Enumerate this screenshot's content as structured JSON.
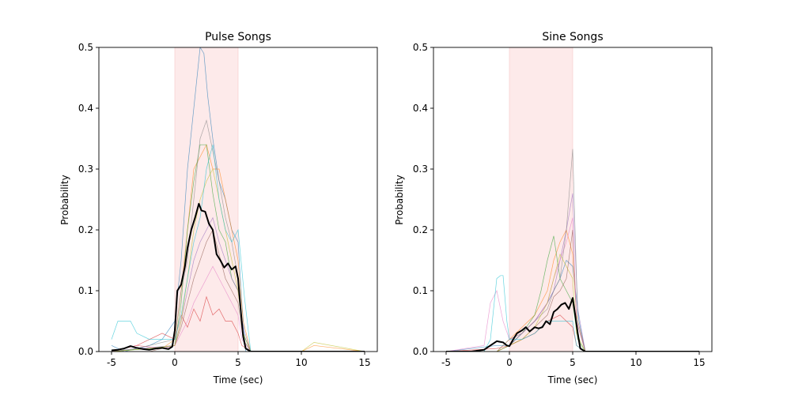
{
  "chart_data": [
    {
      "type": "line",
      "title": "Pulse Songs",
      "xlabel": "Time (sec)",
      "ylabel": "Probability",
      "xlim": [
        -6,
        16
      ],
      "ylim": [
        0,
        0.5
      ],
      "x_ticks": [
        -5,
        0,
        5,
        10,
        15
      ],
      "y_ticks": [
        "0.0",
        "0.1",
        "0.2",
        "0.3",
        "0.4",
        "0.5"
      ],
      "shaded_region": [
        0,
        5
      ],
      "shade_color": "#fde8e8",
      "grid": false,
      "mean_series": {
        "color": "#000000",
        "x": [
          -5,
          -4.5,
          -4,
          -3.5,
          -3,
          -2.5,
          -2,
          -1.5,
          -1,
          -0.5,
          -0.2,
          0,
          0.2,
          0.5,
          0.8,
          1.0,
          1.3,
          1.6,
          1.9,
          2.1,
          2.4,
          2.7,
          3.0,
          3.3,
          3.6,
          3.9,
          4.2,
          4.5,
          4.8,
          5.0,
          5.2,
          5.4,
          5.6,
          6.0,
          8,
          10,
          12,
          15
        ],
        "y": [
          0.002,
          0.003,
          0.005,
          0.009,
          0.006,
          0.004,
          0.003,
          0.005,
          0.006,
          0.004,
          0.008,
          0.035,
          0.1,
          0.11,
          0.14,
          0.17,
          0.2,
          0.22,
          0.243,
          0.232,
          0.23,
          0.21,
          0.2,
          0.16,
          0.15,
          0.138,
          0.145,
          0.135,
          0.14,
          0.12,
          0.07,
          0.025,
          0.005,
          0.0,
          0.0,
          0.0,
          0.0,
          0.0
        ]
      },
      "trial_series": [
        {
          "color": "#1f77b4",
          "x": [
            -5,
            -4,
            -2,
            -1,
            0,
            0.5,
            1,
            1.5,
            2,
            2.3,
            2.6,
            3,
            3.5,
            4,
            4.5,
            5,
            5.3,
            5.6,
            7,
            15
          ],
          "y": [
            0.01,
            0.0,
            0.01,
            0.02,
            0.05,
            0.15,
            0.3,
            0.4,
            0.5,
            0.49,
            0.42,
            0.35,
            0.28,
            0.25,
            0.2,
            0.18,
            0.08,
            0.0,
            0.0,
            0.0
          ]
        },
        {
          "color": "#ff7f0e",
          "x": [
            -5,
            -3,
            -1,
            0,
            0.5,
            1,
            1.5,
            2,
            2.5,
            3,
            3.5,
            4,
            4.5,
            5,
            5.4,
            6,
            10,
            11,
            15
          ],
          "y": [
            0.0,
            0.01,
            0.005,
            0.02,
            0.1,
            0.2,
            0.3,
            0.32,
            0.34,
            0.3,
            0.3,
            0.25,
            0.2,
            0.15,
            0.05,
            0.0,
            0.0,
            0.01,
            0.0
          ]
        },
        {
          "color": "#2ca02c",
          "x": [
            -5,
            -2,
            0,
            0.5,
            1,
            1.5,
            2,
            2.5,
            3,
            3.5,
            4,
            4.5,
            5,
            5.4,
            6,
            15
          ],
          "y": [
            0.0,
            0.005,
            0.01,
            0.08,
            0.2,
            0.28,
            0.34,
            0.34,
            0.26,
            0.2,
            0.18,
            0.12,
            0.1,
            0.03,
            0.0,
            0.0
          ]
        },
        {
          "color": "#d62728",
          "x": [
            -5,
            -3,
            -1,
            0,
            0.5,
            1,
            1.5,
            2,
            2.5,
            3,
            3.5,
            4,
            4.5,
            5,
            5.3,
            6,
            15
          ],
          "y": [
            0.0,
            0.01,
            0.03,
            0.02,
            0.06,
            0.04,
            0.07,
            0.05,
            0.09,
            0.06,
            0.07,
            0.05,
            0.05,
            0.03,
            0.01,
            0.0,
            0.0
          ]
        },
        {
          "color": "#9467bd",
          "x": [
            -5,
            -3,
            0,
            0.5,
            1,
            1.5,
            2,
            2.5,
            3,
            3.5,
            4,
            4.5,
            5,
            5.4,
            6,
            15
          ],
          "y": [
            0.0,
            0.005,
            0.01,
            0.05,
            0.1,
            0.15,
            0.18,
            0.2,
            0.22,
            0.18,
            0.15,
            0.12,
            0.1,
            0.04,
            0.0,
            0.0
          ]
        },
        {
          "color": "#8c564b",
          "x": [
            -5,
            -2,
            0,
            0.5,
            1,
            1.5,
            2,
            2.5,
            3,
            3.5,
            4,
            4.5,
            5,
            5.4,
            6,
            15
          ],
          "y": [
            0.0,
            0.0,
            0.01,
            0.04,
            0.08,
            0.12,
            0.15,
            0.18,
            0.2,
            0.16,
            0.12,
            0.1,
            0.08,
            0.02,
            0.0,
            0.0
          ]
        },
        {
          "color": "#e377c2",
          "x": [
            -5,
            -4,
            -3,
            -1,
            0,
            0.5,
            1,
            1.5,
            2,
            2.5,
            3,
            3.5,
            4,
            4.5,
            5,
            5.3,
            6,
            15
          ],
          "y": [
            0.0,
            0.005,
            0.01,
            0.005,
            0.01,
            0.03,
            0.05,
            0.08,
            0.1,
            0.12,
            0.14,
            0.12,
            0.1,
            0.08,
            0.06,
            0.02,
            0.0,
            0.0
          ]
        },
        {
          "color": "#7f7f7f",
          "x": [
            -5,
            -3,
            0,
            0.5,
            1,
            1.5,
            2,
            2.5,
            3,
            3.5,
            4,
            4.5,
            5,
            5.4,
            6,
            15
          ],
          "y": [
            0.0,
            0.005,
            0.02,
            0.1,
            0.15,
            0.25,
            0.35,
            0.38,
            0.33,
            0.28,
            0.22,
            0.18,
            0.12,
            0.03,
            0.0,
            0.0
          ]
        },
        {
          "color": "#bcbd22",
          "x": [
            -5,
            -2,
            0,
            0.5,
            1,
            1.5,
            2,
            2.5,
            3,
            3.5,
            4,
            4.5,
            5,
            5.4,
            6,
            10,
            11,
            15
          ],
          "y": [
            0.0,
            0.005,
            0.01,
            0.05,
            0.12,
            0.2,
            0.25,
            0.28,
            0.3,
            0.25,
            0.2,
            0.15,
            0.1,
            0.03,
            0.0,
            0.0,
            0.015,
            0.0
          ]
        },
        {
          "color": "#17becf",
          "x": [
            -5,
            -4.5,
            -4,
            -3.5,
            -3,
            -2,
            0,
            0.5,
            1,
            1.5,
            2,
            2.5,
            3,
            3.5,
            4,
            4.5,
            5,
            5.5,
            6,
            15
          ],
          "y": [
            0.02,
            0.05,
            0.05,
            0.05,
            0.03,
            0.02,
            0.02,
            0.06,
            0.12,
            0.18,
            0.22,
            0.3,
            0.34,
            0.25,
            0.2,
            0.18,
            0.2,
            0.09,
            0.0,
            0.0
          ]
        }
      ]
    },
    {
      "type": "line",
      "title": "Sine Songs",
      "xlabel": "Time (sec)",
      "ylabel": "Probability",
      "xlim": [
        -6,
        16
      ],
      "ylim": [
        0,
        0.5
      ],
      "x_ticks": [
        -5,
        0,
        5,
        10,
        15
      ],
      "y_ticks": [
        "0.0",
        "0.1",
        "0.2",
        "0.3",
        "0.4",
        "0.5"
      ],
      "shaded_region": [
        0,
        5
      ],
      "shade_color": "#fde8e8",
      "grid": false,
      "mean_series": {
        "color": "#000000",
        "x": [
          -5,
          -3,
          -2,
          -1.5,
          -1,
          -0.5,
          -0.2,
          0,
          0.3,
          0.6,
          1.0,
          1.3,
          1.6,
          2.0,
          2.3,
          2.6,
          2.9,
          3.2,
          3.5,
          3.8,
          4.1,
          4.4,
          4.7,
          5.0,
          5.2,
          5.4,
          5.6,
          6.0,
          8,
          10,
          12,
          15
        ],
        "y": [
          0.0,
          0.0,
          0.003,
          0.01,
          0.017,
          0.015,
          0.01,
          0.009,
          0.02,
          0.03,
          0.035,
          0.04,
          0.033,
          0.04,
          0.038,
          0.04,
          0.05,
          0.045,
          0.065,
          0.07,
          0.077,
          0.08,
          0.07,
          0.088,
          0.06,
          0.03,
          0.005,
          0.0,
          0.0,
          0.0,
          0.0,
          0.0
        ]
      },
      "trial_series": [
        {
          "color": "#1f77b4",
          "x": [
            -5,
            -1,
            0,
            1,
            2,
            3,
            3.5,
            4,
            4.5,
            5,
            5.5,
            6,
            15
          ],
          "y": [
            0.0,
            0.01,
            0.01,
            0.03,
            0.05,
            0.08,
            0.1,
            0.12,
            0.15,
            0.14,
            0.05,
            0.0,
            0.0
          ]
        },
        {
          "color": "#ff7f0e",
          "x": [
            -5,
            -1,
            0,
            1,
            2,
            3,
            3.5,
            4,
            4.5,
            5,
            5.3,
            6,
            15
          ],
          "y": [
            0.0,
            0.0,
            0.02,
            0.04,
            0.06,
            0.1,
            0.15,
            0.18,
            0.2,
            0.16,
            0.06,
            0.0,
            0.0
          ]
        },
        {
          "color": "#2ca02c",
          "x": [
            -5,
            -1,
            0,
            1,
            2,
            2.5,
            3,
            3.5,
            4,
            4.5,
            5,
            5.4,
            6,
            15
          ],
          "y": [
            0.0,
            0.0,
            0.01,
            0.03,
            0.06,
            0.1,
            0.15,
            0.19,
            0.12,
            0.1,
            0.08,
            0.02,
            0.0,
            0.0
          ]
        },
        {
          "color": "#d62728",
          "x": [
            -5,
            -1,
            0,
            1,
            2,
            3,
            4,
            4.5,
            5,
            5.3,
            6,
            15
          ],
          "y": [
            0.0,
            0.005,
            0.01,
            0.02,
            0.03,
            0.05,
            0.06,
            0.05,
            0.04,
            0.01,
            0.0,
            0.0
          ]
        },
        {
          "color": "#9467bd",
          "x": [
            -5,
            -1,
            0,
            1,
            2,
            3,
            3.5,
            4,
            4.5,
            5,
            5.4,
            6,
            15
          ],
          "y": [
            0.0,
            0.0,
            0.01,
            0.03,
            0.05,
            0.08,
            0.1,
            0.15,
            0.2,
            0.26,
            0.07,
            0.0,
            0.0
          ]
        },
        {
          "color": "#8c564b",
          "x": [
            -5,
            -1,
            0,
            1,
            2,
            3,
            3.5,
            4,
            4.5,
            5,
            5.3,
            6,
            15
          ],
          "y": [
            0.0,
            0.0,
            0.01,
            0.02,
            0.04,
            0.06,
            0.09,
            0.1,
            0.12,
            0.2,
            0.05,
            0.0,
            0.0
          ]
        },
        {
          "color": "#e377c2",
          "x": [
            -5,
            -2,
            -1.5,
            -1,
            -0.5,
            0,
            1,
            2,
            3,
            3.5,
            4,
            4.5,
            5,
            5.3,
            6,
            15
          ],
          "y": [
            0.0,
            0.01,
            0.08,
            0.1,
            0.05,
            0.02,
            0.03,
            0.05,
            0.08,
            0.12,
            0.15,
            0.18,
            0.22,
            0.05,
            0.0,
            0.0
          ]
        },
        {
          "color": "#7f7f7f",
          "x": [
            -5,
            -1,
            0,
            1,
            2,
            3,
            3.5,
            4,
            4.5,
            5,
            5.4,
            6,
            15
          ],
          "y": [
            0.0,
            0.0,
            0.02,
            0.03,
            0.05,
            0.07,
            0.1,
            0.12,
            0.2,
            0.333,
            0.05,
            0.0,
            0.0
          ]
        },
        {
          "color": "#bcbd22",
          "x": [
            -5,
            -1,
            0,
            1,
            2,
            3,
            3.5,
            4,
            4.5,
            5,
            5.3,
            6,
            15
          ],
          "y": [
            0.0,
            0.0,
            0.01,
            0.02,
            0.04,
            0.08,
            0.12,
            0.16,
            0.14,
            0.12,
            0.03,
            0.0,
            0.0
          ]
        },
        {
          "color": "#17becf",
          "x": [
            -5,
            -2,
            -1.5,
            -1,
            -0.7,
            -0.5,
            -0.2,
            0,
            1,
            2,
            3,
            4,
            5,
            5.3,
            6,
            15
          ],
          "y": [
            0.0,
            0.0,
            0.02,
            0.12,
            0.125,
            0.125,
            0.05,
            0.02,
            0.02,
            0.03,
            0.05,
            0.05,
            0.05,
            0.01,
            0.0,
            0.0
          ]
        }
      ]
    }
  ]
}
